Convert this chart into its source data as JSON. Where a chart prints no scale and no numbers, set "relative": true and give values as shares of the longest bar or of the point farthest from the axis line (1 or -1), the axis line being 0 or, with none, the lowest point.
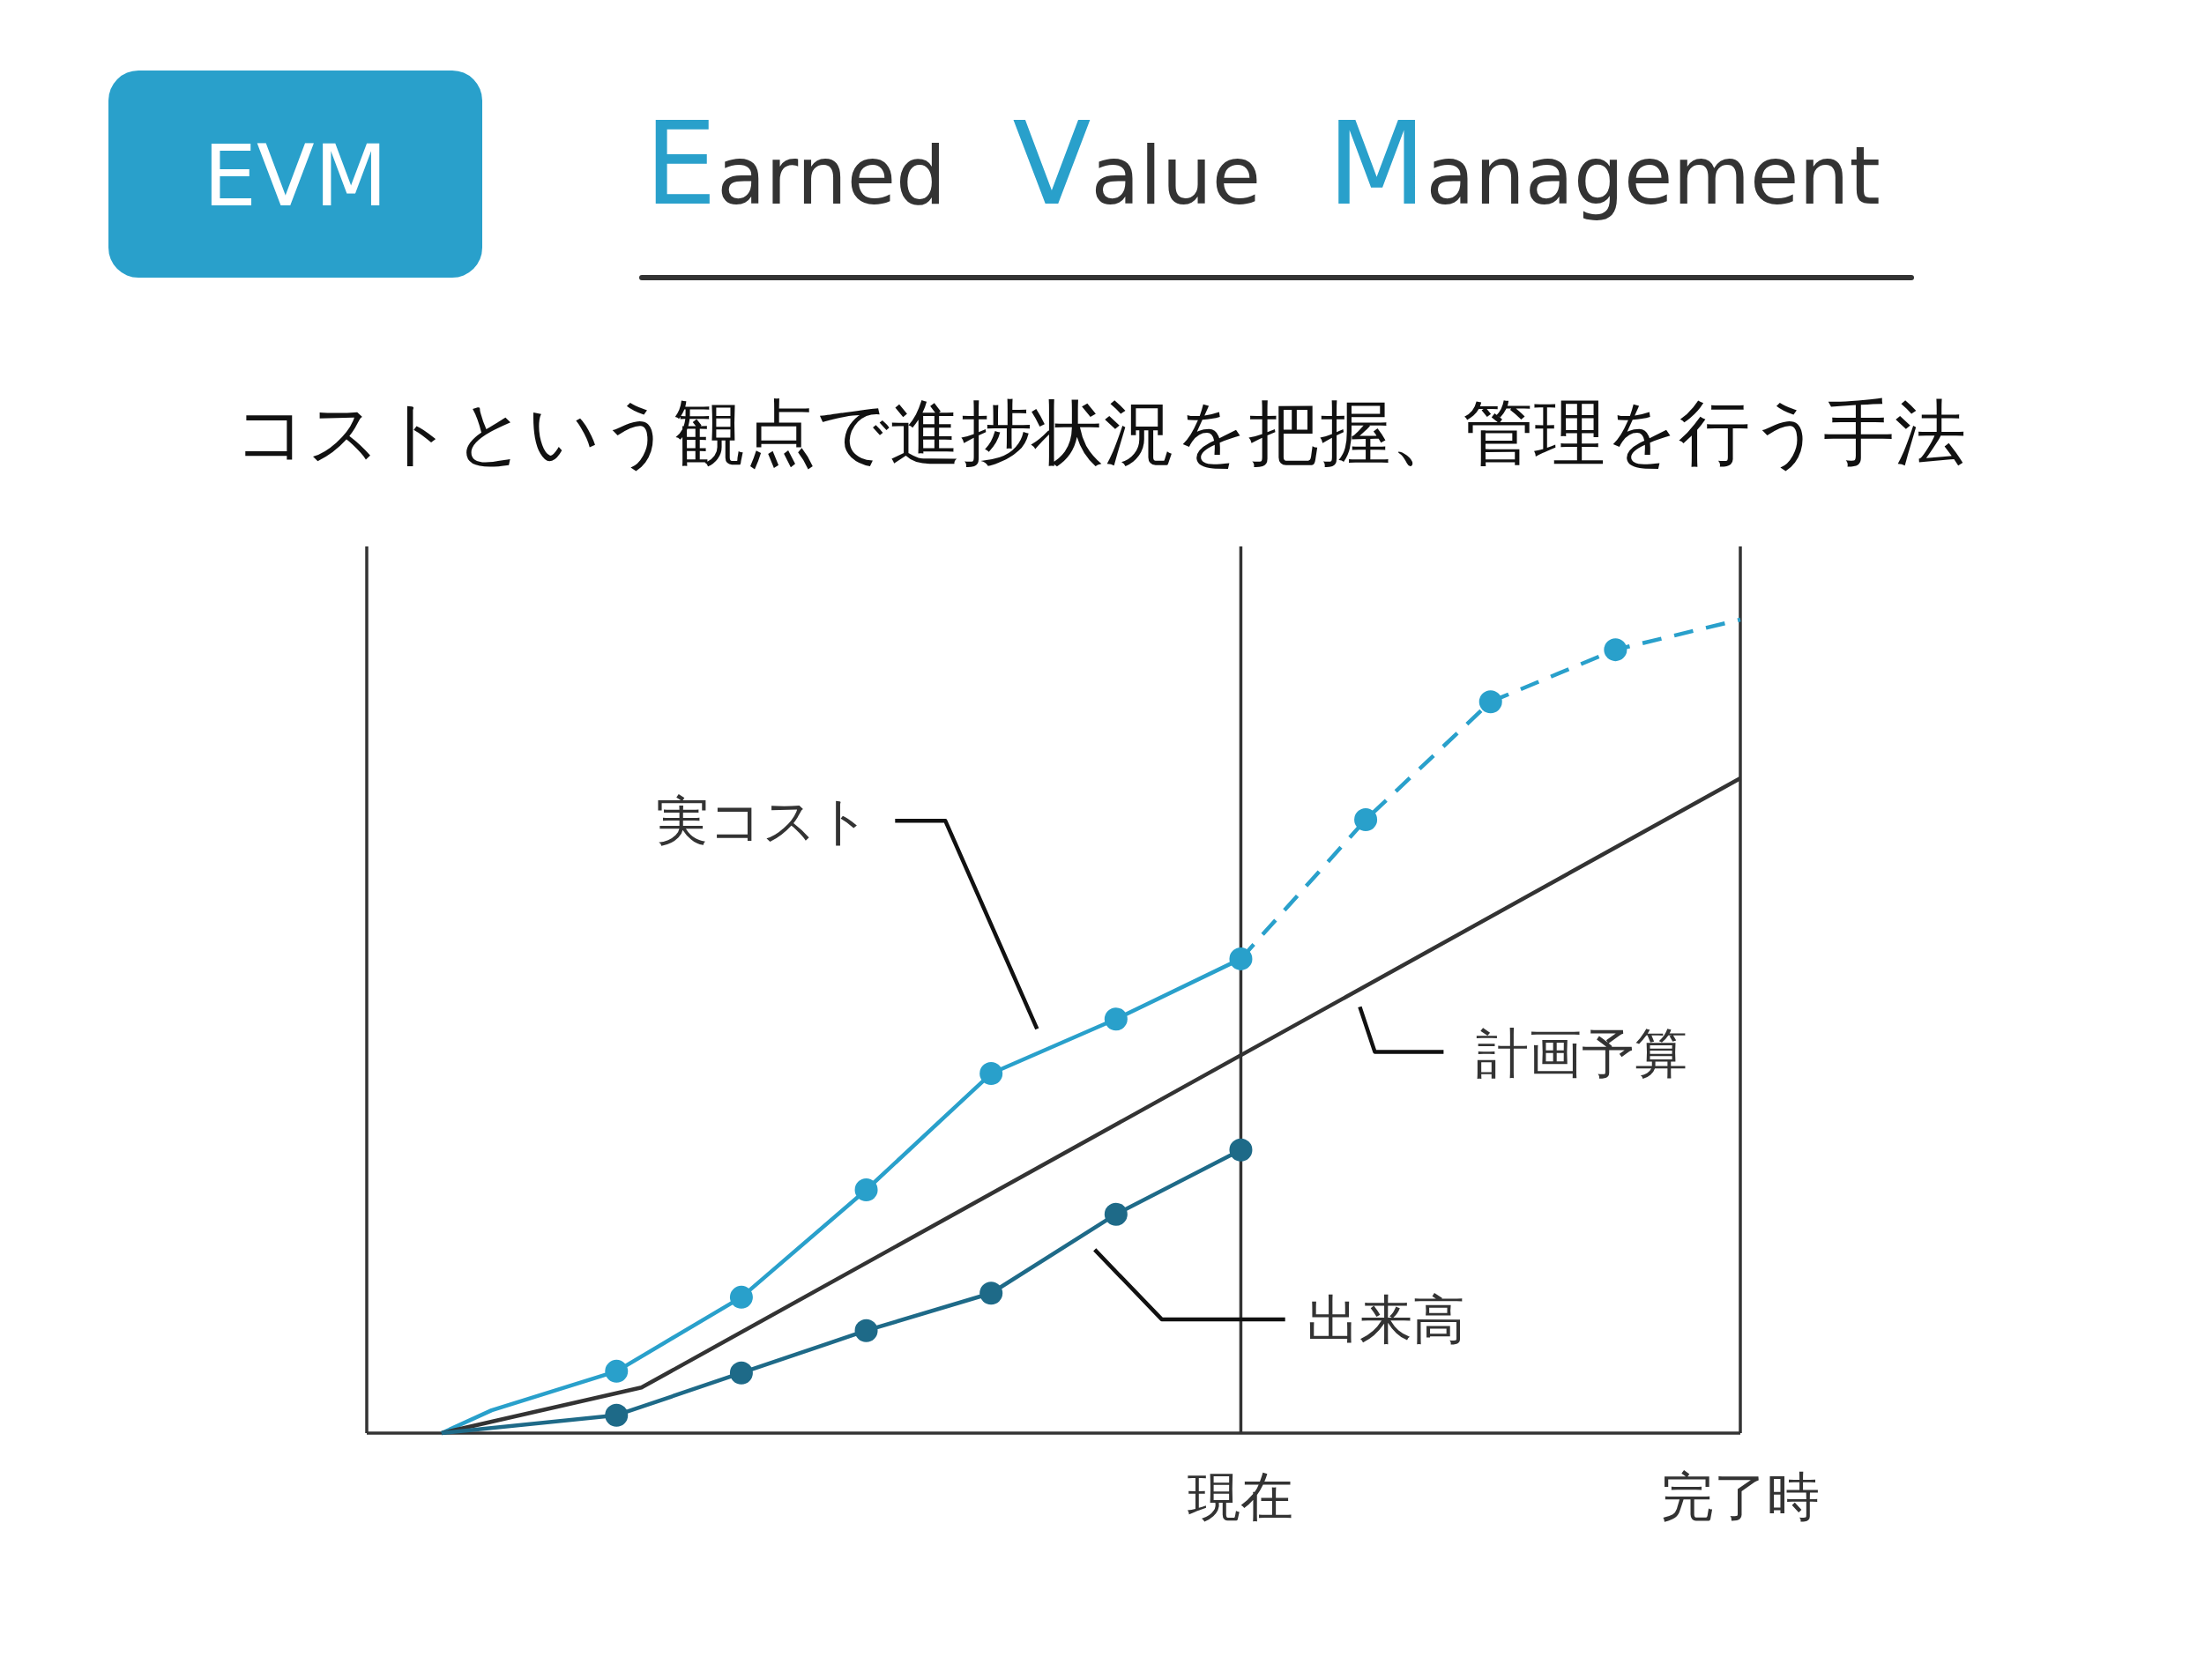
{
  "chart_data": {
    "type": "line",
    "title": "Earned Value Management",
    "subtitle": "コストという観点で進捗状況を把握、管理を行う手法",
    "annotations": [
      "EVM"
    ],
    "relative": true,
    "tick_labels": "x",
    "categories": [
      null,
      null,
      null,
      null,
      null,
      null,
      null,
      null,
      null,
      null,
      null,
      null,
      null,
      null,
      null,
      null,
      null,
      null,
      null,
      null,
      null,
      null,
      null,
      null,
      null,
      null,
      null,
      null,
      null,
      null,
      null,
      null,
      null,
      null,
      null,
      "現在",
      null,
      null,
      null,
      null,
      null,
      null,
      null,
      null,
      null,
      null,
      null,
      null,
      null,
      null,
      null,
      null,
      null,
      null,
      null,
      "完了時"
    ],
    "ref_lines": [
      {
        "axis": "x",
        "value": "現在",
        "color": "#333333"
      }
    ],
    "series": [
      {
        "name": "実コスト",
        "type": "line",
        "color": "#29a0cb",
        "values": [
          null,
          null,
          null,
          0,
          null,
          0.028,
          null,
          null,
          null,
          null,
          0.076,
          null,
          null,
          null,
          null,
          0.167,
          null,
          null,
          null,
          null,
          0.299,
          null,
          null,
          null,
          null,
          0.442,
          null,
          null,
          null,
          null,
          0.509,
          null,
          null,
          null,
          null,
          0.583,
          null,
          null,
          null,
          null,
          null,
          null,
          null,
          null,
          null,
          null,
          null,
          null,
          null,
          null,
          null,
          null,
          null,
          null,
          null,
          null
        ]
      },
      {
        "type": "line",
        "color": "#29a0cb",
        "line_style": "dashed",
        "values": [
          null,
          null,
          null,
          null,
          null,
          null,
          null,
          null,
          null,
          null,
          null,
          null,
          null,
          null,
          null,
          null,
          null,
          null,
          null,
          null,
          null,
          null,
          null,
          null,
          null,
          null,
          null,
          null,
          null,
          null,
          null,
          null,
          null,
          null,
          null,
          0.583,
          null,
          null,
          null,
          null,
          0.754,
          null,
          null,
          null,
          null,
          0.899,
          null,
          null,
          null,
          null,
          0.963,
          null,
          null,
          null,
          null,
          1
        ]
      },
      {
        "name": "計画予算",
        "type": "line",
        "color": "#333333",
        "values": [
          null,
          null,
          null,
          0,
          null,
          null,
          null,
          null,
          null,
          null,
          null,
          0.056,
          null,
          null,
          null,
          null,
          null,
          null,
          null,
          null,
          null,
          null,
          null,
          null,
          null,
          null,
          null,
          null,
          null,
          null,
          null,
          null,
          null,
          null,
          null,
          null,
          null,
          null,
          null,
          null,
          null,
          null,
          null,
          null,
          null,
          null,
          null,
          null,
          null,
          null,
          null,
          null,
          null,
          null,
          null,
          0.805
        ]
      },
      {
        "name": "出来高",
        "type": "line",
        "color": "#1e6a88",
        "values": [
          null,
          null,
          null,
          0,
          null,
          null,
          null,
          null,
          null,
          null,
          0.022,
          null,
          null,
          null,
          null,
          0.074,
          null,
          null,
          null,
          null,
          0.126,
          null,
          null,
          null,
          null,
          0.172,
          null,
          null,
          null,
          null,
          0.269,
          null,
          null,
          null,
          null,
          0.348,
          null,
          null,
          null,
          null,
          null,
          null,
          null,
          null,
          null,
          null,
          null,
          null,
          null,
          null,
          null,
          null,
          null,
          null,
          null,
          null
        ]
      },
      {
        "type": "scatter",
        "marker": "circle",
        "color": "#29a0cb",
        "values": [
          null,
          null,
          null,
          null,
          null,
          null,
          null,
          null,
          null,
          null,
          0.076,
          null,
          null,
          null,
          null,
          0.167,
          null,
          null,
          null,
          null,
          0.299,
          null,
          null,
          null,
          null,
          0.442,
          null,
          null,
          null,
          null,
          0.509,
          null,
          null,
          null,
          null,
          0.583,
          null,
          null,
          null,
          null,
          0.754,
          null,
          null,
          null,
          null,
          0.899,
          null,
          null,
          null,
          null,
          0.963,
          null,
          null,
          null,
          null,
          null
        ]
      },
      {
        "type": "scatter",
        "marker": "circle",
        "color": "#1e6a88",
        "values": [
          null,
          null,
          null,
          null,
          null,
          null,
          null,
          null,
          null,
          null,
          0.022,
          null,
          null,
          null,
          null,
          0.074,
          null,
          null,
          null,
          null,
          0.126,
          null,
          null,
          null,
          null,
          0.172,
          null,
          null,
          null,
          null,
          0.269,
          null,
          null,
          null,
          null,
          0.348,
          null,
          null,
          null,
          null,
          null,
          null,
          null,
          null,
          null,
          null,
          null,
          null,
          null,
          null,
          null,
          null,
          null,
          null,
          null,
          null
        ]
      }
    ]
  }
}
